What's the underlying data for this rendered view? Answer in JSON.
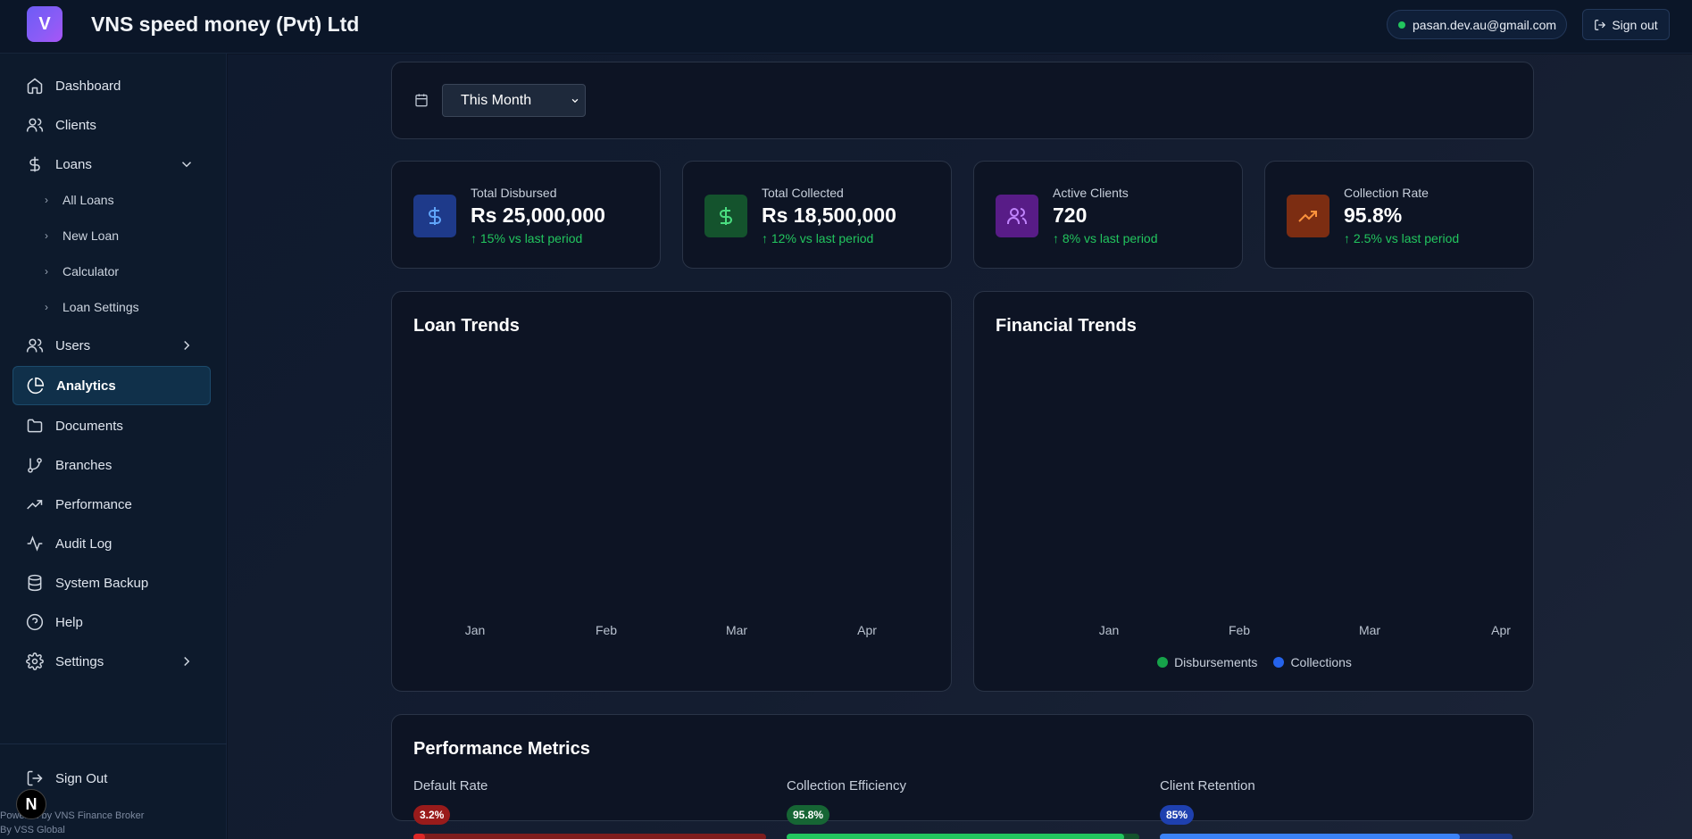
{
  "header": {
    "logo_letter": "V",
    "title": "VNS speed money (Pvt) Ltd",
    "user_email": "pasan.dev.au@gmail.com",
    "signout_label": "Sign out"
  },
  "sidebar": {
    "items": [
      {
        "label": "Dashboard",
        "icon": "home-icon"
      },
      {
        "label": "Clients",
        "icon": "users-icon"
      },
      {
        "label": "Loans",
        "icon": "dollar-icon"
      },
      {
        "label": "Users",
        "icon": "users-icon"
      },
      {
        "label": "Analytics",
        "icon": "pie-chart-icon"
      },
      {
        "label": "Documents",
        "icon": "folder-icon"
      },
      {
        "label": "Branches",
        "icon": "git-branch-icon"
      },
      {
        "label": "Performance",
        "icon": "trending-up-icon"
      },
      {
        "label": "Audit Log",
        "icon": "activity-icon"
      },
      {
        "label": "System Backup",
        "icon": "database-icon"
      },
      {
        "label": "Help",
        "icon": "help-circle-icon"
      },
      {
        "label": "Settings",
        "icon": "gear-icon"
      }
    ],
    "loan_subitems": [
      "All Loans",
      "New Loan",
      "Calculator",
      "Loan Settings"
    ],
    "signout_label": "Sign Out",
    "powered_line1": "Powered by VNS Finance Broker",
    "powered_line2": "By VSS Global",
    "n_badge": "N"
  },
  "filter": {
    "selected_period": "This Month"
  },
  "stats": [
    {
      "label": "Total Disbursed",
      "value": "Rs 25,000,000",
      "change": "↑ 15% vs last period",
      "icon": "dollar-icon",
      "bg": "#1e3a8a",
      "fg": "#60a5fa"
    },
    {
      "label": "Total Collected",
      "value": "Rs 18,500,000",
      "change": "↑ 12% vs last period",
      "icon": "dollar-icon",
      "bg": "#14532d",
      "fg": "#4ade80"
    },
    {
      "label": "Active Clients",
      "value": "720",
      "change": "↑ 8% vs last period",
      "icon": "users-icon",
      "bg": "#581c87",
      "fg": "#c084fc"
    },
    {
      "label": "Collection Rate",
      "value": "95.8%",
      "change": "↑ 2.5% vs last period",
      "icon": "trending-up-icon",
      "bg": "#7c2d12",
      "fg": "#fb923c"
    }
  ],
  "charts": {
    "loan_trends": {
      "title": "Loan Trends",
      "categories": [
        "Jan",
        "Feb",
        "Mar",
        "Apr"
      ]
    },
    "financial_trends": {
      "title": "Financial Trends",
      "categories": [
        "Jan",
        "Feb",
        "Mar",
        "Apr"
      ],
      "legend": [
        {
          "name": "Disbursements",
          "color": "#16a34a"
        },
        {
          "name": "Collections",
          "color": "#2563eb"
        }
      ]
    }
  },
  "performance": {
    "title": "Performance Metrics",
    "metrics": [
      {
        "label": "Default Rate",
        "value": "3.2%",
        "fraction": 0.032,
        "color": "#dc2626",
        "badge_bg": "#991b1b",
        "track": "#7f1d1d"
      },
      {
        "label": "Collection Efficiency",
        "value": "95.8%",
        "fraction": 0.958,
        "color": "#22c55e",
        "badge_bg": "#166534",
        "track": "#14532d"
      },
      {
        "label": "Client Retention",
        "value": "85%",
        "fraction": 0.85,
        "color": "#3b82f6",
        "badge_bg": "#1e40af",
        "track": "#1e3a8a"
      }
    ]
  }
}
